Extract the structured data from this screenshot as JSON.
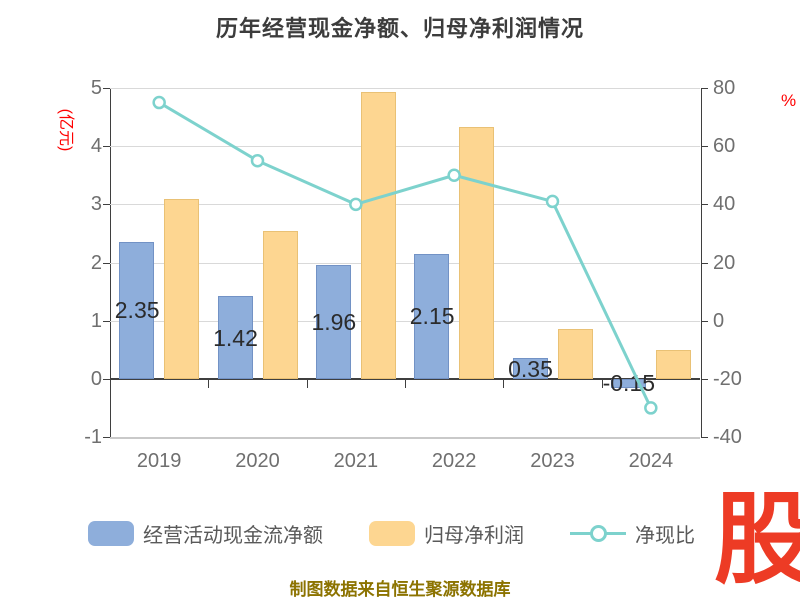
{
  "title": "历年经营现金净额、归母净利润情况",
  "left_axis": {
    "name": "(亿元)",
    "name_color": "#FF0000",
    "ticks": [
      "5",
      "4",
      "3",
      "2",
      "1",
      "0",
      "-1"
    ]
  },
  "right_axis": {
    "name": "%",
    "name_color": "#FF0000",
    "ticks": [
      "80",
      "60",
      "40",
      "20",
      "0",
      "-20",
      "-40"
    ]
  },
  "chart_data": {
    "type": "bar",
    "title": "历年经营现金净额、归母净利润情况",
    "categories": [
      "2019",
      "2020",
      "2021",
      "2022",
      "2023",
      "2024"
    ],
    "series": [
      {
        "name": "经营活动现金流净额",
        "type": "bar",
        "axis": "left",
        "color": "#8EAEDB",
        "border": "#7292C5",
        "values": [
          2.35,
          1.42,
          1.96,
          2.15,
          0.35,
          -0.15
        ],
        "labels": [
          "2.35",
          "1.42",
          "1.96",
          "2.15",
          "0.35",
          "-0.15"
        ]
      },
      {
        "name": "归母净利润",
        "type": "bar",
        "axis": "left",
        "color": "#FDD691",
        "border": "#E9C175",
        "values": [
          3.1,
          2.55,
          4.93,
          4.33,
          0.85,
          0.5
        ]
      },
      {
        "name": "净现比",
        "type": "line",
        "axis": "right",
        "color": "#7DD2CD",
        "values": [
          75,
          55,
          40,
          50,
          41,
          -30
        ]
      }
    ],
    "ylabel_left": "(亿元)",
    "ylabel_right": "%",
    "ylim_left": [
      -1,
      5
    ],
    "ylim_right": [
      -40,
      80
    ],
    "grid": true,
    "legend_position": "bottom"
  },
  "legend": [
    {
      "label": "经营活动现金流净额",
      "type": "bar",
      "color": "#8EAEDB"
    },
    {
      "label": "归母净利润",
      "type": "bar",
      "color": "#FDD691"
    },
    {
      "label": "净现比",
      "type": "line",
      "color": "#7DD2CD"
    }
  ],
  "footer": "制图数据来自恒生聚源数据库",
  "watermark": "股"
}
